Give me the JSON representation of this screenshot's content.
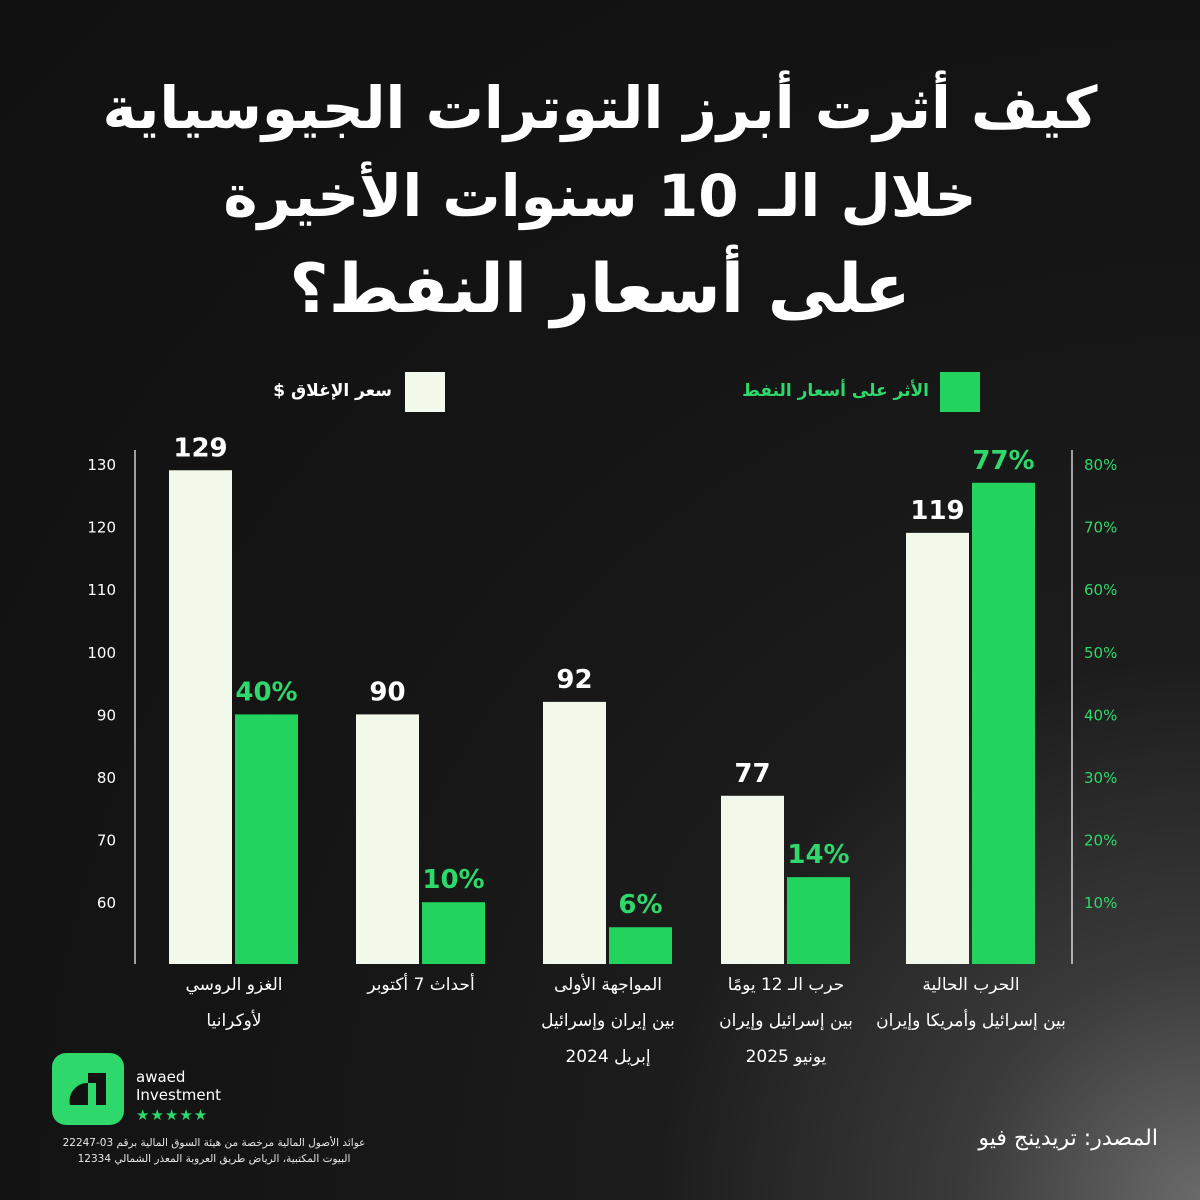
{
  "title": {
    "line1": "كيف أثرت أبرز التوترات الجيوسياية",
    "line2": "خلال الـ 10 سنوات الأخيرة",
    "line3": "على أسعار النفط؟"
  },
  "legend": {
    "price_label": "سعر الإغلاق $",
    "impact_label": "الأثر على أسعار النفط"
  },
  "colors": {
    "price_bar": "#f3f9ea",
    "impact_bar": "#22d45e",
    "impact_text": "#2ed86a",
    "axis": "#ffffff"
  },
  "chart_data": {
    "type": "bar",
    "categories": [
      [
        "الغزو الروسي",
        "لأوكرانيا"
      ],
      [
        "أحداث 7 أكتوبر"
      ],
      [
        "المواجهة الأولى",
        "بين إيران وإسرائيل",
        "إبريل 2024"
      ],
      [
        "حرب الـ 12 يومًا",
        "بين إسرائيل وإيران",
        "يونيو 2025"
      ],
      [
        "الحرب الحالية",
        "بين إسرائيل وأمريكا وإيران"
      ]
    ],
    "series": [
      {
        "name": "سعر الإغلاق $",
        "values": [
          129,
          90,
          92,
          77,
          119
        ],
        "labels": [
          "129",
          "90",
          "92",
          "77",
          "119"
        ],
        "axis": "left"
      },
      {
        "name": "الأثر على أسعار النفط",
        "values": [
          40,
          10,
          6,
          14,
          77
        ],
        "labels": [
          "40%",
          "10%",
          "6%",
          "14%",
          "77%"
        ],
        "axis": "right"
      }
    ],
    "left_axis": {
      "ticks": [
        60,
        70,
        80,
        90,
        100,
        110,
        120,
        130
      ],
      "range": [
        52,
        130
      ]
    },
    "right_axis": {
      "ticks": [
        "10%",
        "20%",
        "30%",
        "40%",
        "50%",
        "60%",
        "70%",
        "80%"
      ],
      "tick_values": [
        10,
        20,
        30,
        40,
        50,
        60,
        70,
        80
      ],
      "range": [
        2,
        80
      ]
    }
  },
  "footer": {
    "brand_line1": "awaed",
    "brand_line2": "Investment",
    "stars": "★★★★★",
    "license_line1": "عوائد الأصول المالية مرخصة من هيئة السوق المالية برقم 03-22247",
    "license_line2": "البيوت المكتبية، الرياض طريق العروبة المعذر الشمالي 12334",
    "source": "المصدر: تريدينج فيو"
  }
}
